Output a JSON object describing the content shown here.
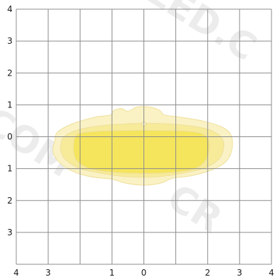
{
  "chart_data": {
    "type": "heatmap",
    "title": "",
    "xlabel": "",
    "ylabel": "",
    "grid": true,
    "xlim": [
      -4,
      4
    ],
    "ylim": [
      -4,
      4
    ],
    "x_ticks": [
      {
        "value": -4,
        "label": "4"
      },
      {
        "value": -3,
        "label": "3"
      },
      {
        "value": -1,
        "label": "1"
      },
      {
        "value": 0,
        "label": "0"
      },
      {
        "value": 2,
        "label": "2"
      },
      {
        "value": 3,
        "label": "3"
      },
      {
        "value": 4,
        "label": "4"
      }
    ],
    "y_ticks": [
      {
        "value": 4,
        "label": "4"
      },
      {
        "value": 3,
        "label": "3"
      },
      {
        "value": 2,
        "label": "2"
      },
      {
        "value": 1,
        "label": "1"
      },
      {
        "value": 0,
        "label": "0"
      },
      {
        "value": -1,
        "label": "1"
      },
      {
        "value": -2,
        "label": "2"
      },
      {
        "value": -3,
        "label": "3"
      }
    ],
    "contours": [
      {
        "name": "outer",
        "color": "#faf2c4",
        "points": [
          [
            -2.8,
            -0.15
          ],
          [
            -2.7,
            0.15
          ],
          [
            -2.2,
            0.42
          ],
          [
            -1.5,
            0.62
          ],
          [
            -1.05,
            0.68
          ],
          [
            -0.95,
            0.82
          ],
          [
            -0.7,
            0.88
          ],
          [
            -0.5,
            0.8
          ],
          [
            -0.25,
            0.92
          ],
          [
            0,
            0.95
          ],
          [
            0.25,
            0.92
          ],
          [
            0.5,
            0.82
          ],
          [
            0.65,
            0.68
          ],
          [
            1.1,
            0.62
          ],
          [
            1.9,
            0.48
          ],
          [
            2.5,
            0.28
          ],
          [
            2.75,
            0
          ],
          [
            2.75,
            -0.45
          ],
          [
            2.55,
            -0.8
          ],
          [
            2.1,
            -1.05
          ],
          [
            1.5,
            -1.22
          ],
          [
            0.9,
            -1.3
          ],
          [
            0.55,
            -1.45
          ],
          [
            0,
            -1.52
          ],
          [
            -0.6,
            -1.45
          ],
          [
            -1.0,
            -1.33
          ],
          [
            -1.7,
            -1.25
          ],
          [
            -2.3,
            -1.05
          ],
          [
            -2.7,
            -0.75
          ],
          [
            -2.85,
            -0.45
          ]
        ]
      },
      {
        "name": "middle",
        "color": "#f7eb9a",
        "points": [
          [
            -2.6,
            -0.25
          ],
          [
            -2.5,
            0
          ],
          [
            -2.1,
            0.2
          ],
          [
            -1.4,
            0.34
          ],
          [
            -0.6,
            0.4
          ],
          [
            0,
            0.42
          ],
          [
            0.8,
            0.4
          ],
          [
            1.6,
            0.32
          ],
          [
            2.15,
            0.18
          ],
          [
            2.45,
            -0.05
          ],
          [
            2.5,
            -0.35
          ],
          [
            2.35,
            -0.7
          ],
          [
            1.9,
            -0.98
          ],
          [
            1.2,
            -1.15
          ],
          [
            0.5,
            -1.25
          ],
          [
            0,
            -1.27
          ],
          [
            -0.6,
            -1.25
          ],
          [
            -1.3,
            -1.15
          ],
          [
            -2.0,
            -1.0
          ],
          [
            -2.45,
            -0.72
          ],
          [
            -2.6,
            -0.45
          ]
        ]
      },
      {
        "name": "inner",
        "color": "#f5e55c",
        "points": [
          [
            -2.2,
            -0.2
          ],
          [
            -2.15,
            0
          ],
          [
            -1.95,
            0.12
          ],
          [
            -1.2,
            0.18
          ],
          [
            0,
            0.2
          ],
          [
            1.2,
            0.18
          ],
          [
            1.75,
            0.12
          ],
          [
            2.0,
            -0.05
          ],
          [
            2.05,
            -0.35
          ],
          [
            1.95,
            -0.72
          ],
          [
            1.6,
            -1.0
          ],
          [
            0.9,
            -1.12
          ],
          [
            0,
            -1.15
          ],
          [
            -0.9,
            -1.12
          ],
          [
            -1.7,
            -1.0
          ],
          [
            -2.1,
            -0.75
          ],
          [
            -2.2,
            -0.45
          ]
        ]
      }
    ],
    "hotspot": {
      "x": 0,
      "y": 0.4,
      "color": "#fbf6d8"
    }
  }
}
